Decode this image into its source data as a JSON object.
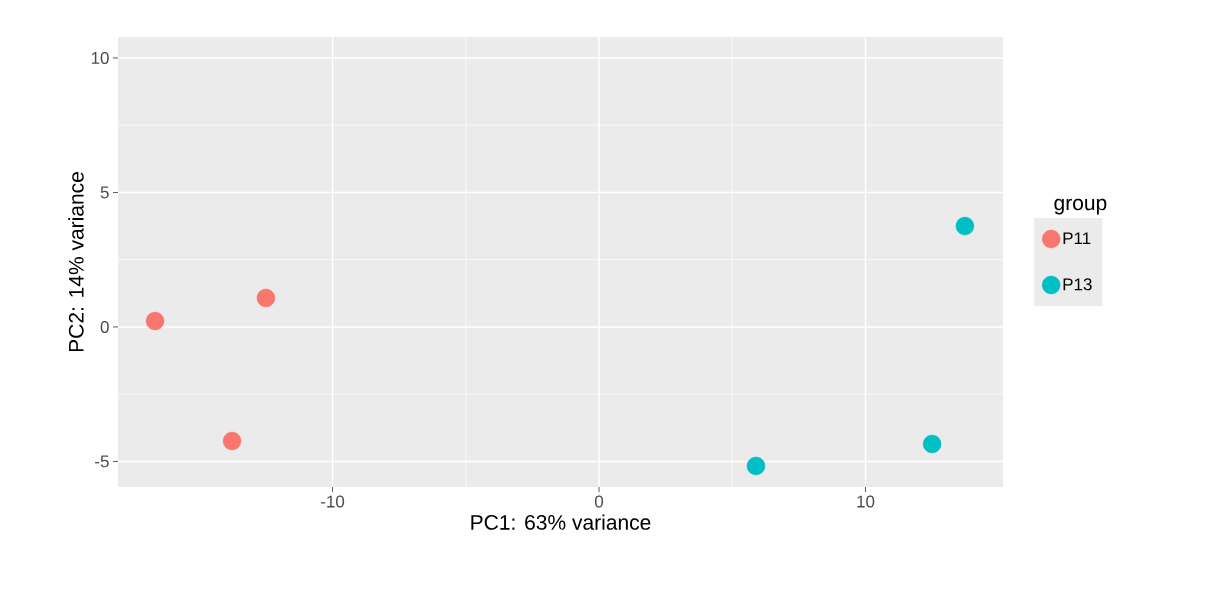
{
  "chart_data": {
    "type": "scatter",
    "xlabel": "PC1: 63% variance",
    "ylabel": "PC2: 14% variance",
    "legend_title": "group",
    "series": [
      {
        "name": "P11",
        "color": "#f8766d",
        "x": [
          -16.66,
          -12.5,
          -13.77
        ],
        "values": [
          0.22,
          1.08,
          -4.24
        ]
      },
      {
        "name": "P13",
        "color": "#00bfc4",
        "x": [
          13.73,
          12.5,
          5.89
        ],
        "values": [
          3.75,
          -4.35,
          -5.17
        ]
      }
    ],
    "xlim": [
      -18.05,
      15.16
    ],
    "ylim": [
      -5.95,
      10.78
    ],
    "xticks": [
      -10,
      0,
      10
    ],
    "yticks": [
      -5,
      0,
      5,
      10
    ],
    "grid": true,
    "legend": "right",
    "marker": "circle"
  }
}
